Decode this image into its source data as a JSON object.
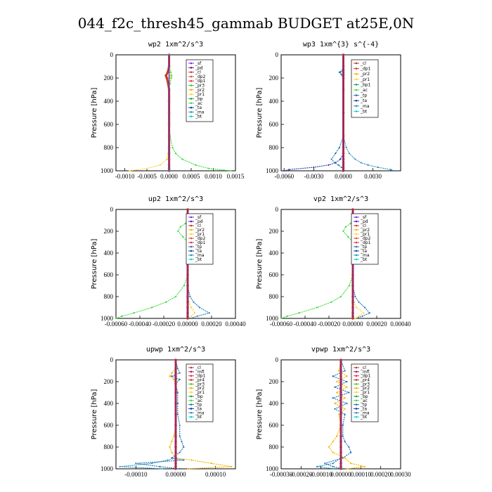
{
  "figure_title": "044_f2c_thresh45_gammab  BUDGET at25E,0N",
  "colors": {
    "sf": "#8a2be2",
    "pd": "#6a0dad",
    "cl": "#c0392b",
    "dp2": "#e74c3c",
    "dp1": "#e8313a",
    "pr1": "#ffd23f",
    "pr2": "#f4b400",
    "pr3": "#2ecc40",
    "pr4": "#d62728",
    "mfl": "#9b1b7a",
    "bp": "#1fa04f",
    "ac": "#3ddc3d",
    "tp": "#1f77b4",
    "ta": "#1c3f9e",
    "ma": "#2c8fb5",
    "bt": "#00d5e0"
  },
  "chart_data": [
    {
      "type": "line",
      "title": "wp2  1xm^2/s^3",
      "ylabel": "Pressure [hPa]",
      "ylim": [
        1000,
        0
      ],
      "xlim": [
        -0.0012,
        0.0015
      ],
      "xticks": [
        -0.001,
        -0.0005,
        0.0,
        0.0005,
        0.001,
        0.0015
      ],
      "xtick_labels": [
        "-0.0010",
        "-0.0005",
        "0.0000",
        "0.0005",
        "0.0010",
        "0.0015"
      ],
      "yticks": [
        0,
        200,
        400,
        600,
        800,
        1000
      ],
      "ytick_labels": [
        "0",
        "200",
        "400",
        "600",
        "800",
        "1000"
      ],
      "legend": [
        "_sf",
        "_pd",
        "_cl",
        "_dp2",
        "_dp1",
        "_pr3",
        "_pr2",
        "_pr1",
        "_bp",
        "_ac",
        "_ta",
        "_ma",
        "_bt"
      ],
      "y": [
        0,
        100,
        150,
        180,
        200,
        250,
        300,
        400,
        500,
        600,
        700,
        800,
        850,
        900,
        950,
        980,
        1000
      ],
      "series": [
        {
          "name": "_pr1",
          "key": "pr1",
          "values": [
            0,
            0,
            2e-05,
            3e-05,
            2e-05,
            1e-05,
            0,
            0,
            0,
            0,
            0,
            -1e-05,
            -2e-05,
            -5e-05,
            -0.0002,
            -0.0005,
            -0.0009
          ]
        },
        {
          "name": "_ac",
          "key": "ac",
          "values": [
            0,
            0,
            4e-05,
            6e-05,
            5e-05,
            2e-05,
            0,
            0,
            0,
            0,
            2e-05,
            8e-05,
            0.00015,
            0.0003,
            0.0006,
            0.0009,
            0.0014
          ]
        },
        {
          "name": "_cl",
          "key": "cl",
          "values": [
            0,
            0,
            -3e-05,
            -7e-05,
            -5e-05,
            -2e-05,
            0,
            0,
            0,
            0,
            0,
            0,
            0,
            0,
            0,
            0,
            0
          ]
        },
        {
          "name": "_bt",
          "key": "bt",
          "values": [
            0,
            0,
            0,
            0,
            0,
            0,
            0,
            0,
            0,
            0,
            0,
            0,
            0,
            0,
            0,
            0,
            0
          ]
        }
      ]
    },
    {
      "type": "line",
      "title": "wp3  1xm^{3} s^{-4}",
      "ylabel": "Pressure [hPa]",
      "ylim": [
        1000,
        0
      ],
      "xlim": [
        -0.0063,
        0.0058
      ],
      "xticks": [
        -0.006,
        -0.003,
        0.0,
        0.003
      ],
      "xtick_labels": [
        "-0.0060",
        "-0.0030",
        "0.0000",
        "0.0030"
      ],
      "yticks": [
        0,
        200,
        400,
        600,
        800,
        1000
      ],
      "ytick_labels": [
        "0",
        "200",
        "400",
        "600",
        "800",
        "1000"
      ],
      "legend": [
        "_cl",
        "_dp1",
        "_pr2",
        "_pr1",
        "_bp1",
        "_ac",
        "_tp",
        "_ta",
        "_ma",
        "_bt"
      ],
      "y": [
        0,
        100,
        130,
        150,
        170,
        200,
        300,
        500,
        700,
        800,
        850,
        900,
        930,
        950,
        970,
        990,
        1000
      ],
      "series": [
        {
          "name": "_ta",
          "key": "ta",
          "values": [
            0,
            0,
            0,
            0,
            0,
            0,
            0,
            0,
            0,
            0,
            0,
            -0.0003,
            -0.0008,
            -0.0015,
            -0.003,
            -0.0055,
            -0.006
          ]
        },
        {
          "name": "_ma",
          "key": "ma",
          "values": [
            0,
            0,
            0,
            -0.0003,
            -0.0002,
            0,
            0,
            0,
            0,
            0.0003,
            0.0006,
            0.0012,
            0.0018,
            0.0025,
            0.0035,
            0.0048,
            0.0052
          ]
        },
        {
          "name": "_tp",
          "key": "tp",
          "values": [
            0,
            0,
            -0.0001,
            -0.0004,
            -0.0002,
            0,
            0,
            0,
            0,
            -0.0004,
            -0.0008,
            -0.0012,
            -0.0009,
            -0.0005,
            -0.0002,
            0,
            0
          ]
        },
        {
          "name": "_cl",
          "key": "cl",
          "values": [
            0,
            0,
            0,
            0,
            0,
            0,
            0,
            0,
            0,
            0,
            0,
            0,
            0,
            0,
            0,
            0,
            0
          ]
        }
      ]
    },
    {
      "type": "line",
      "title": "up2  1xm^2/s^3",
      "ylabel": "Pressure [hPa]",
      "ylim": [
        1000,
        0
      ],
      "xlim": [
        -0.0006,
        0.0004
      ],
      "xticks": [
        -0.0006,
        -0.0004,
        -0.0002,
        0.0,
        0.0002,
        0.0004
      ],
      "xtick_labels": [
        "-0.00060",
        "-0.00040",
        "-0.00020",
        "0.00000",
        "0.00020",
        "0.00040"
      ],
      "yticks": [
        0,
        200,
        400,
        600,
        800,
        1000
      ],
      "ytick_labels": [
        "0",
        "200",
        "400",
        "600",
        "800",
        "1000"
      ],
      "legend": [
        "_sf",
        "_pd",
        "_cl",
        "_pr2",
        "_pr1",
        "_dp2",
        "_dp1",
        "_tp",
        "_ta",
        "_ma",
        "_bt"
      ],
      "y": [
        0,
        100,
        130,
        160,
        200,
        250,
        300,
        400,
        500,
        600,
        700,
        800,
        850,
        900,
        950,
        980,
        1000
      ],
      "series": [
        {
          "name": "_ac",
          "key": "ac",
          "values": [
            0,
            0,
            -2e-05,
            -6e-05,
            -8e-05,
            -4e-05,
            0,
            0,
            0,
            0,
            -3e-05,
            -0.0001,
            -0.00018,
            -0.0003,
            -0.00045,
            -0.00055,
            -0.0006
          ]
        },
        {
          "name": "_tp",
          "key": "tp",
          "values": [
            0,
            0,
            3e-05,
            8e-05,
            6e-05,
            2e-05,
            0,
            0,
            0,
            0,
            0,
            2e-05,
            5e-05,
            0.0001,
            0.00018,
            8e-05,
            2e-05
          ]
        },
        {
          "name": "_pr1",
          "key": "pr1",
          "values": [
            0,
            0,
            2e-05,
            4e-05,
            3e-05,
            1e-05,
            0,
            0,
            0,
            0,
            0,
            0,
            1e-05,
            3e-05,
            6e-05,
            3e-05,
            0
          ]
        },
        {
          "name": "_cl",
          "key": "cl",
          "values": [
            0,
            0,
            0,
            0,
            0,
            0,
            0,
            0,
            0,
            0,
            0,
            0,
            0,
            0,
            0,
            0,
            0
          ]
        }
      ]
    },
    {
      "type": "line",
      "title": "vp2  1xm^2/s^3",
      "ylabel": "Pressure [hPa]",
      "ylim": [
        1000,
        0
      ],
      "xlim": [
        -0.0006,
        0.0004
      ],
      "xticks": [
        -0.0006,
        -0.0004,
        -0.0002,
        0.0,
        0.0002,
        0.0004
      ],
      "xtick_labels": [
        "-0.00060",
        "-0.00040",
        "-0.00020",
        "0.00000",
        "0.00020",
        "0.00040"
      ],
      "yticks": [
        0,
        200,
        400,
        600,
        800,
        1000
      ],
      "ytick_labels": [
        "0",
        "200",
        "400",
        "600",
        "800",
        "1000"
      ],
      "legend": [
        "_sf",
        "_pd",
        "_cl",
        "_pr2",
        "_pr1",
        "_dp2",
        "_dp1",
        "_tp",
        "_ta",
        "_ma",
        "_bt"
      ],
      "y": [
        0,
        100,
        130,
        160,
        200,
        250,
        300,
        400,
        500,
        600,
        700,
        800,
        850,
        900,
        950,
        980,
        1000
      ],
      "series": [
        {
          "name": "_ac",
          "key": "ac",
          "values": [
            0,
            0,
            -2e-05,
            -6e-05,
            -8e-05,
            -4e-05,
            0,
            0,
            0,
            0,
            -3e-05,
            -0.0001,
            -0.00018,
            -0.0003,
            -0.00045,
            -0.00055,
            -0.0006
          ]
        },
        {
          "name": "_tp",
          "key": "tp",
          "values": [
            0,
            0,
            3e-05,
            8e-05,
            6e-05,
            2e-05,
            0,
            0,
            0,
            0,
            0,
            2e-05,
            5e-05,
            0.0001,
            0.00014,
            8e-05,
            2e-05
          ]
        },
        {
          "name": "_pr1",
          "key": "pr1",
          "values": [
            0,
            0,
            2e-05,
            4e-05,
            3e-05,
            1e-05,
            0,
            0,
            0,
            0,
            0,
            0,
            1e-05,
            3e-05,
            9e-05,
            5e-05,
            2e-05
          ]
        },
        {
          "name": "_cl",
          "key": "cl",
          "values": [
            0,
            0,
            0,
            0,
            0,
            0,
            0,
            0,
            0,
            0,
            0,
            0,
            0,
            0,
            0,
            0,
            0
          ]
        }
      ]
    },
    {
      "type": "line",
      "title": "upwp  1xm^2/s^3",
      "ylabel": "Pressure [hPa]",
      "ylim": [
        1000,
        0
      ],
      "xlim": [
        -0.00015,
        0.00015
      ],
      "xticks": [
        -0.0001,
        0.0,
        0.0001
      ],
      "xtick_labels": [
        "-0.00010",
        "0.00000",
        "0.00010"
      ],
      "yticks": [
        0,
        200,
        400,
        600,
        800,
        1000
      ],
      "ytick_labels": [
        "0",
        "200",
        "400",
        "600",
        "800",
        "1000"
      ],
      "legend": [
        "_cl",
        "_mfl",
        "_dp1",
        "_pr4",
        "_pr3",
        "_pr2",
        "_pr1",
        "_bp",
        "_ac",
        "_tp",
        "_ta",
        "_ma",
        "_bt"
      ],
      "y": [
        0,
        80,
        120,
        150,
        180,
        220,
        300,
        400,
        500,
        600,
        700,
        750,
        800,
        850,
        900,
        920,
        950,
        980,
        1000
      ],
      "series": [
        {
          "name": "_tp",
          "key": "tp",
          "values": [
            0,
            5e-06,
            1e-05,
            -1e-05,
            1e-05,
            0,
            5e-06,
            5e-06,
            5e-06,
            1e-05,
            1e-05,
            1.5e-05,
            2e-05,
            1e-05,
            -1e-05,
            2e-05,
            -0.0001,
            -4e-05,
            1e-05
          ]
        },
        {
          "name": "_pr2",
          "key": "pr2",
          "values": [
            0,
            0,
            -1e-05,
            -1.5e-05,
            -5e-06,
            0,
            0,
            0,
            0,
            0,
            -5e-06,
            -1e-05,
            -1.5e-05,
            -1e-05,
            0,
            4e-05,
            9e-05,
            0.00014,
            3e-05
          ]
        },
        {
          "name": "_ma",
          "key": "ma",
          "values": [
            0,
            0,
            0,
            0,
            0,
            0,
            0,
            0,
            0,
            0,
            0,
            0,
            0,
            0,
            0,
            -2e-05,
            -6e-05,
            -0.00014,
            -3e-05
          ]
        },
        {
          "name": "_cl",
          "key": "cl",
          "values": [
            0,
            0,
            0,
            0,
            0,
            0,
            0,
            0,
            0,
            0,
            0,
            0,
            0,
            0,
            0,
            0,
            0,
            0,
            0
          ]
        }
      ]
    },
    {
      "type": "line",
      "title": "vpwp  1xm^2/s^3",
      "ylabel": "Pressure [hPa]",
      "ylim": [
        1000,
        0
      ],
      "xlim": [
        -0.0003,
        0.0003
      ],
      "xticks": [
        -0.0003,
        -0.0002,
        -0.0001,
        0.0,
        0.0001,
        0.0002,
        0.0003
      ],
      "xtick_labels": [
        "-0.00030",
        "-0.00020",
        "-0.00010",
        "0.00000",
        "0.00010",
        "0.00020",
        "0.00030"
      ],
      "yticks": [
        0,
        200,
        400,
        600,
        800,
        1000
      ],
      "ytick_labels": [
        "0",
        "200",
        "400",
        "600",
        "800",
        "1000"
      ],
      "legend": [
        "_cl",
        "_mfl",
        "_dp1",
        "_pr4",
        "_pr3",
        "_pr2",
        "_pr1",
        "_bp",
        "_ac",
        "_tp",
        "_ta",
        "_ma",
        "_bt"
      ],
      "y": [
        0,
        100,
        150,
        200,
        250,
        300,
        350,
        400,
        450,
        500,
        600,
        700,
        750,
        800,
        850,
        900,
        950,
        980,
        1000
      ],
      "series": [
        {
          "name": "_tp",
          "key": "tp",
          "values": [
            0,
            2e-05,
            -4e-05,
            3e-05,
            -3e-05,
            4e-05,
            -4e-05,
            3e-05,
            -3e-05,
            2e-05,
            1e-05,
            1e-05,
            2e-05,
            4e-05,
            5e-05,
            1e-05,
            -8e-05,
            -4e-05,
            1e-05
          ]
        },
        {
          "name": "_pr2",
          "key": "pr2",
          "values": [
            0,
            -1e-05,
            3e-05,
            -2e-05,
            3e-05,
            -2e-05,
            2e-05,
            -3e-05,
            2e-05,
            -1e-05,
            0,
            -2e-05,
            -4e-05,
            -6e-05,
            -4e-05,
            2e-05,
            5e-05,
            0.00012,
            3e-05
          ]
        },
        {
          "name": "_ma",
          "key": "ma",
          "values": [
            0,
            0,
            0,
            0,
            0,
            0,
            0,
            0,
            0,
            0,
            0,
            0,
            0,
            0,
            0,
            0,
            -4e-05,
            -0.00012,
            -3e-05
          ]
        },
        {
          "name": "_cl",
          "key": "cl",
          "values": [
            0,
            0,
            0,
            0,
            0,
            0,
            0,
            0,
            0,
            0,
            0,
            0,
            0,
            0,
            0,
            0,
            0,
            0,
            0
          ]
        }
      ]
    }
  ]
}
